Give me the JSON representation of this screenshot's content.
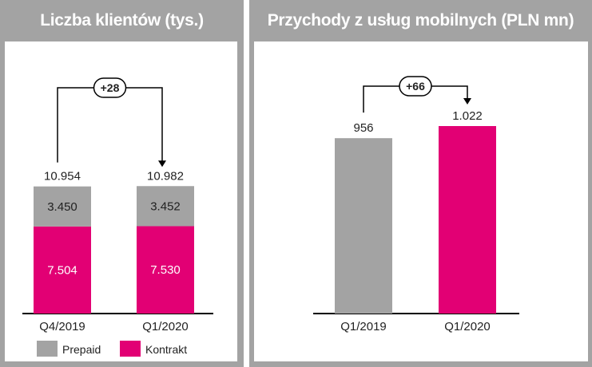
{
  "colors": {
    "prepaid": "#a3a3a3",
    "kontrakt": "#e20074",
    "frame": "#a3a3a3",
    "text": "#222222"
  },
  "charts": {
    "left": {
      "title": "Liczba klientów (tys.)",
      "delta_label": "+28",
      "legend": {
        "prepaid": "Prepaid",
        "kontrakt": "Kontrakt"
      },
      "columns": [
        {
          "category": "Q4/2019",
          "total_label": "10.954",
          "prepaid_label": "3.450",
          "kontrakt_label": "7.504"
        },
        {
          "category": "Q1/2020",
          "total_label": "10.982",
          "prepaid_label": "3.452",
          "kontrakt_label": "7.530"
        }
      ]
    },
    "right": {
      "title": "Przychody z usług mobilnych (PLN mn)",
      "delta_label": "+66",
      "columns": [
        {
          "category": "Q1/2019",
          "value_label": "956"
        },
        {
          "category": "Q1/2020",
          "value_label": "1.022"
        }
      ]
    }
  },
  "chart_data": [
    {
      "type": "bar",
      "stacked": true,
      "title": "Liczba klientów (tys.)",
      "categories": [
        "Q4/2019",
        "Q1/2020"
      ],
      "series": [
        {
          "name": "Kontrakt",
          "values": [
            7504,
            7530
          ]
        },
        {
          "name": "Prepaid",
          "values": [
            3450,
            3452
          ]
        }
      ],
      "totals": [
        10954,
        10982
      ],
      "delta": 28,
      "ylim": [
        0,
        11500
      ],
      "legend": "bottom"
    },
    {
      "type": "bar",
      "title": "Przychody z usług mobilnych (PLN mn)",
      "categories": [
        "Q1/2019",
        "Q1/2020"
      ],
      "values": [
        956,
        1022
      ],
      "delta": 66,
      "ylim": [
        0,
        1100
      ]
    }
  ]
}
